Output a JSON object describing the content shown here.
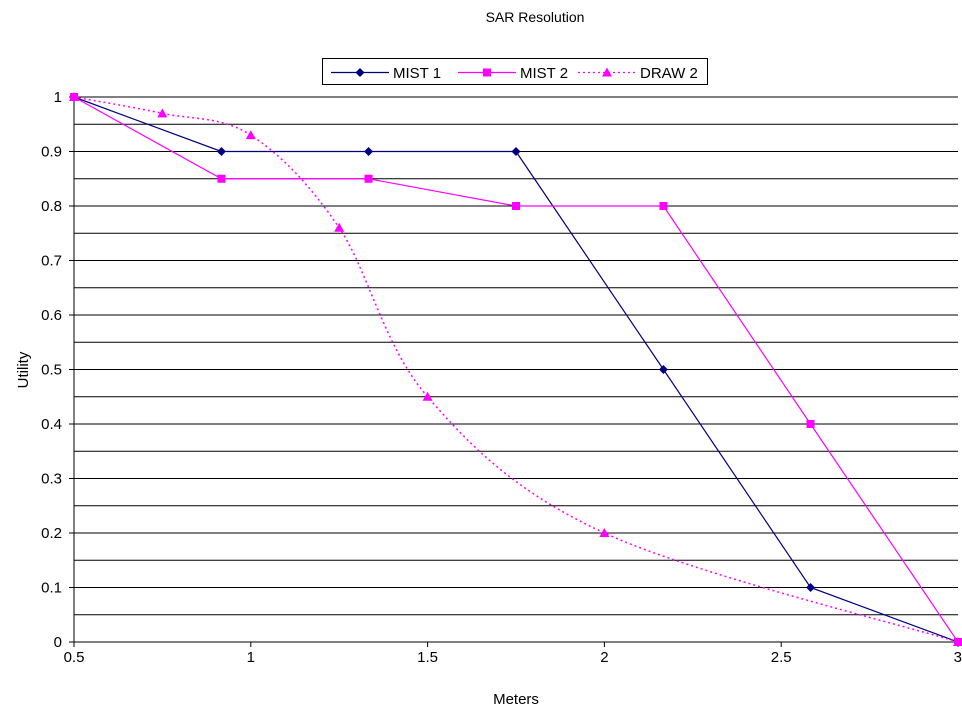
{
  "chart_data": {
    "type": "line",
    "title": "SAR Resolution",
    "xlabel": "Meters",
    "ylabel": "Utility",
    "xlim": [
      0.5,
      3
    ],
    "ylim": [
      0,
      1
    ],
    "x_ticks": [
      "0.5",
      "1",
      "1.5",
      "2",
      "2.5",
      "3"
    ],
    "y_ticks": [
      "0",
      "0.1",
      "0.2",
      "0.3",
      "0.4",
      "0.5",
      "0.6",
      "0.7",
      "0.8",
      "0.9",
      "1"
    ],
    "grid": "horizontal",
    "legend_position": "top-center",
    "series": [
      {
        "name": "MIST 1",
        "color": "#000080",
        "marker": "diamond",
        "style": "solid",
        "x": [
          0.5,
          0.917,
          1.333,
          1.75,
          2.167,
          2.583,
          3.0
        ],
        "y": [
          1.0,
          0.9,
          0.9,
          0.9,
          0.5,
          0.1,
          0.0
        ]
      },
      {
        "name": "MIST 2",
        "color": "#FF00FF",
        "marker": "square",
        "style": "solid",
        "x": [
          0.5,
          0.917,
          1.333,
          1.75,
          2.167,
          2.583,
          3.0
        ],
        "y": [
          1.0,
          0.85,
          0.85,
          0.8,
          0.8,
          0.4,
          0.0
        ]
      },
      {
        "name": "DRAW 2",
        "color": "#FF00FF",
        "marker": "triangle",
        "style": "dotted-smooth",
        "x": [
          0.5,
          0.75,
          1.0,
          1.25,
          1.5,
          2.0,
          3.0
        ],
        "y": [
          1.0,
          0.97,
          0.93,
          0.76,
          0.45,
          0.2,
          0.0
        ]
      }
    ]
  }
}
